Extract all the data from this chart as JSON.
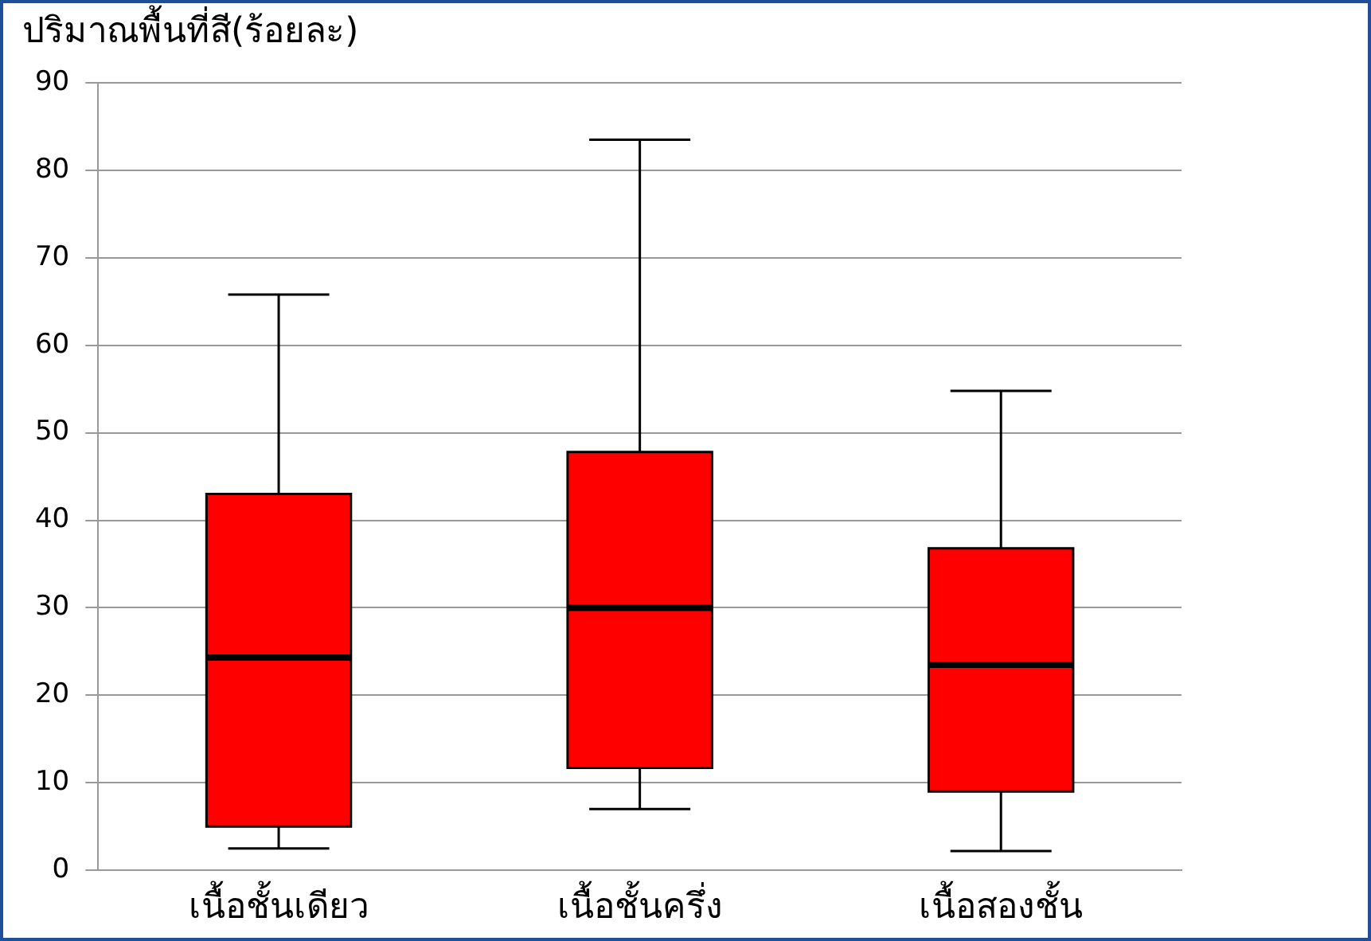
{
  "chart_data": {
    "type": "box",
    "ylabel": "ปริมาณพื้นที่สี(ร้อยละ)",
    "categories": [
      "เนื้อชั้นเดียว",
      "เนื้อชั้นครึ่ง",
      "เนื้อสองชั้น"
    ],
    "color": "#ff0000",
    "boxes": [
      {
        "low": 2.5,
        "q1": 5,
        "median": 24.3,
        "q3": 43,
        "high": 65.8
      },
      {
        "low": 7,
        "q1": 11.7,
        "median": 30,
        "q3": 47.8,
        "high": 83.5
      },
      {
        "low": 2.2,
        "q1": 9,
        "median": 23.5,
        "q3": 36.8,
        "high": 54.8
      }
    ],
    "ylim": [
      0,
      90
    ],
    "yticks": [
      0,
      10,
      20,
      30,
      40,
      50,
      60,
      70,
      80,
      90
    ],
    "grid": "y",
    "legend": false
  }
}
